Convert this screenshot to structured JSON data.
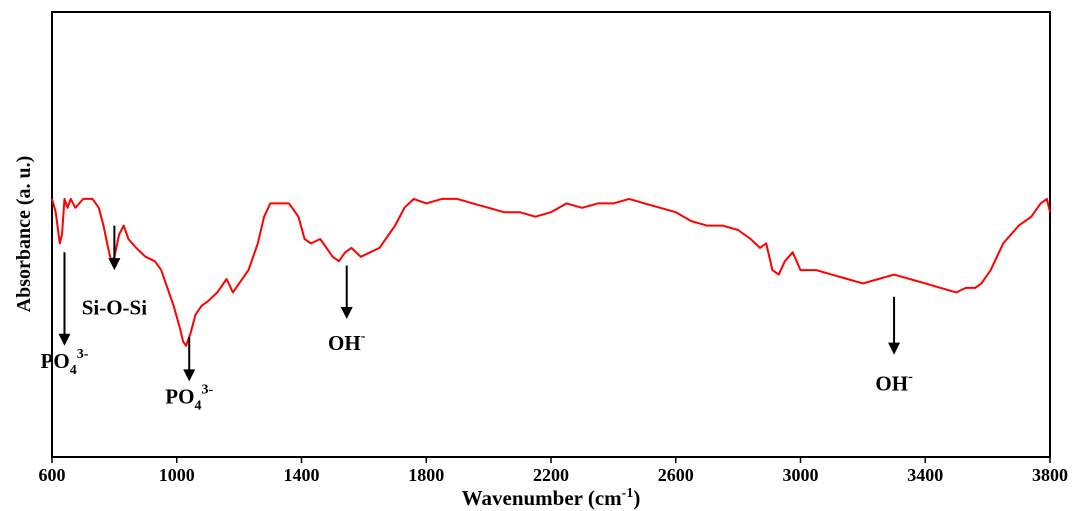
{
  "chart_data": {
    "type": "line",
    "title": "",
    "xlabel": "Wavenumber (cm",
    "xlabel_sup": "-1",
    "xlabel_close": ")",
    "ylabel": "Absorbance (a. u.)",
    "xlim": [
      600,
      3800
    ],
    "ylim": [
      0,
      1
    ],
    "x_ticks": [
      "600",
      "1000",
      "1400",
      "1800",
      "2200",
      "2600",
      "3000",
      "3400",
      "3800"
    ],
    "grid": false,
    "series": [
      {
        "color": "#ff0000",
        "points": [
          [
            600,
            0.58
          ],
          [
            612,
            0.55
          ],
          [
            625,
            0.48
          ],
          [
            632,
            0.5
          ],
          [
            640,
            0.58
          ],
          [
            650,
            0.56
          ],
          [
            660,
            0.58
          ],
          [
            675,
            0.56
          ],
          [
            700,
            0.58
          ],
          [
            730,
            0.58
          ],
          [
            750,
            0.56
          ],
          [
            765,
            0.52
          ],
          [
            780,
            0.47
          ],
          [
            790,
            0.44
          ],
          [
            800,
            0.45
          ],
          [
            815,
            0.5
          ],
          [
            830,
            0.52
          ],
          [
            845,
            0.49
          ],
          [
            870,
            0.47
          ],
          [
            900,
            0.45
          ],
          [
            930,
            0.44
          ],
          [
            950,
            0.42
          ],
          [
            970,
            0.38
          ],
          [
            990,
            0.34
          ],
          [
            1010,
            0.29
          ],
          [
            1020,
            0.26
          ],
          [
            1030,
            0.25
          ],
          [
            1045,
            0.28
          ],
          [
            1060,
            0.32
          ],
          [
            1080,
            0.34
          ],
          [
            1100,
            0.35
          ],
          [
            1130,
            0.37
          ],
          [
            1160,
            0.4
          ],
          [
            1180,
            0.37
          ],
          [
            1200,
            0.39
          ],
          [
            1230,
            0.42
          ],
          [
            1260,
            0.48
          ],
          [
            1280,
            0.54
          ],
          [
            1300,
            0.57
          ],
          [
            1330,
            0.57
          ],
          [
            1360,
            0.57
          ],
          [
            1390,
            0.54
          ],
          [
            1410,
            0.49
          ],
          [
            1430,
            0.48
          ],
          [
            1460,
            0.49
          ],
          [
            1480,
            0.47
          ],
          [
            1500,
            0.45
          ],
          [
            1520,
            0.44
          ],
          [
            1540,
            0.46
          ],
          [
            1560,
            0.47
          ],
          [
            1590,
            0.45
          ],
          [
            1620,
            0.46
          ],
          [
            1650,
            0.47
          ],
          [
            1680,
            0.5
          ],
          [
            1700,
            0.52
          ],
          [
            1730,
            0.56
          ],
          [
            1760,
            0.58
          ],
          [
            1800,
            0.57
          ],
          [
            1850,
            0.58
          ],
          [
            1900,
            0.58
          ],
          [
            1950,
            0.57
          ],
          [
            2000,
            0.56
          ],
          [
            2050,
            0.55
          ],
          [
            2100,
            0.55
          ],
          [
            2150,
            0.54
          ],
          [
            2200,
            0.55
          ],
          [
            2250,
            0.57
          ],
          [
            2300,
            0.56
          ],
          [
            2350,
            0.57
          ],
          [
            2400,
            0.57
          ],
          [
            2450,
            0.58
          ],
          [
            2500,
            0.57
          ],
          [
            2550,
            0.56
          ],
          [
            2600,
            0.55
          ],
          [
            2650,
            0.53
          ],
          [
            2700,
            0.52
          ],
          [
            2750,
            0.52
          ],
          [
            2800,
            0.51
          ],
          [
            2840,
            0.49
          ],
          [
            2870,
            0.47
          ],
          [
            2890,
            0.48
          ],
          [
            2910,
            0.42
          ],
          [
            2930,
            0.41
          ],
          [
            2950,
            0.44
          ],
          [
            2975,
            0.46
          ],
          [
            3000,
            0.42
          ],
          [
            3050,
            0.42
          ],
          [
            3100,
            0.41
          ],
          [
            3150,
            0.4
          ],
          [
            3200,
            0.39
          ],
          [
            3250,
            0.4
          ],
          [
            3300,
            0.41
          ],
          [
            3350,
            0.4
          ],
          [
            3400,
            0.39
          ],
          [
            3450,
            0.38
          ],
          [
            3500,
            0.37
          ],
          [
            3530,
            0.38
          ],
          [
            3560,
            0.38
          ],
          [
            3580,
            0.39
          ],
          [
            3610,
            0.42
          ],
          [
            3650,
            0.48
          ],
          [
            3700,
            0.52
          ],
          [
            3740,
            0.54
          ],
          [
            3770,
            0.57
          ],
          [
            3790,
            0.58
          ],
          [
            3800,
            0.55
          ]
        ]
      }
    ],
    "annotations": [
      {
        "x": 640,
        "arrow": [
          0.46,
          0.25
        ],
        "text": "PO",
        "sub": "4",
        "sup": "3-",
        "text_y": 0.2
      },
      {
        "x": 800,
        "arrow": [
          0.52,
          0.42
        ],
        "text": "Si-O-Si",
        "sub": "",
        "sup": "",
        "text_y": 0.32
      },
      {
        "x": 1040,
        "arrow": [
          0.27,
          0.17
        ],
        "text": "PO",
        "sub": "4",
        "sup": "3-",
        "text_y": 0.12
      },
      {
        "x": 1545,
        "arrow": [
          0.43,
          0.31
        ],
        "text": "OH",
        "sub": "",
        "sup": "-",
        "text_y": 0.24
      },
      {
        "x": 3300,
        "arrow": [
          0.36,
          0.23
        ],
        "text": "OH",
        "sub": "",
        "sup": "-",
        "text_y": 0.15
      }
    ]
  }
}
